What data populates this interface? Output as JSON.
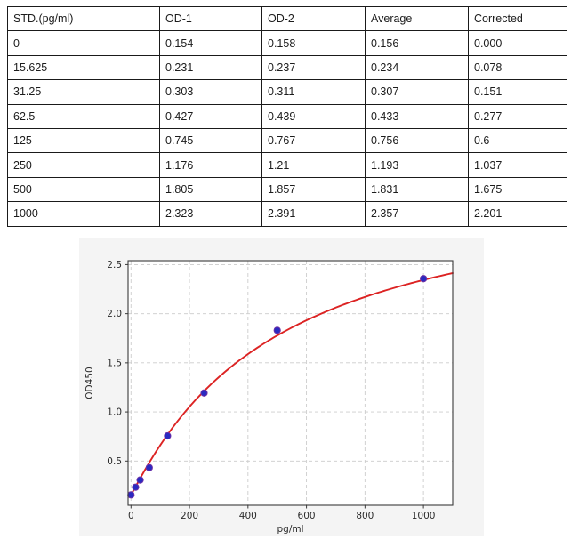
{
  "table": {
    "border_color": "#1a1a1a",
    "headers": [
      "STD.(pg/ml)",
      "OD-1",
      "OD-2",
      "Average",
      "Corrected"
    ],
    "rows": [
      [
        "0",
        "0.154",
        "0.158",
        "0.156",
        "0.000"
      ],
      [
        "15.625",
        "0.231",
        "0.237",
        "0.234",
        "0.078"
      ],
      [
        "31.25",
        "0.303",
        "0.311",
        "0.307",
        "0.151"
      ],
      [
        "62.5",
        "0.427",
        "0.439",
        "0.433",
        "0.277"
      ],
      [
        "125",
        "0.745",
        "0.767",
        "0.756",
        "0.6"
      ],
      [
        "250",
        "1.176",
        "1.21",
        "1.193",
        "1.037"
      ],
      [
        "500",
        "1.805",
        "1.857",
        "1.831",
        "1.675"
      ],
      [
        "1000",
        "2.323",
        "2.391",
        "2.357",
        "2.201"
      ]
    ]
  },
  "chart_data": {
    "type": "scatter",
    "title": "",
    "xlabel": "pg/ml",
    "ylabel": "OD450",
    "x": [
      0,
      15.625,
      31.25,
      62.5,
      125,
      250,
      500,
      1000
    ],
    "y": [
      0.156,
      0.234,
      0.307,
      0.433,
      0.756,
      1.193,
      1.831,
      2.357
    ],
    "fit_curve": {
      "model": "4PL",
      "a": 0.156,
      "b": 1.05,
      "c": 500,
      "d": 3.4,
      "x_start": 0,
      "x_end": 1100
    },
    "xlim": [
      -10,
      1100
    ],
    "ylim": [
      0.05,
      2.54
    ],
    "xticks": [
      0,
      200,
      400,
      600,
      800,
      1000
    ],
    "xtick_labels": [
      "0",
      "200",
      "400",
      "600",
      "800",
      "1000"
    ],
    "yticks": [
      0.5,
      1.0,
      1.5,
      2.0,
      2.5
    ],
    "ytick_labels": [
      "0.5",
      "1.0",
      "1.5",
      "2.0",
      "2.5"
    ],
    "grid": true,
    "legend": "none",
    "colors": {
      "curve": "#dc2323",
      "marker_fill": "#2a2ac0",
      "marker_edge": "#6a30a8",
      "grid": "#cccccc",
      "frame": "#3a3a3a",
      "figure_bg": "#f4f4f4",
      "plot_bg": "#ffffff",
      "tick_text": "#2b2b2b"
    }
  }
}
